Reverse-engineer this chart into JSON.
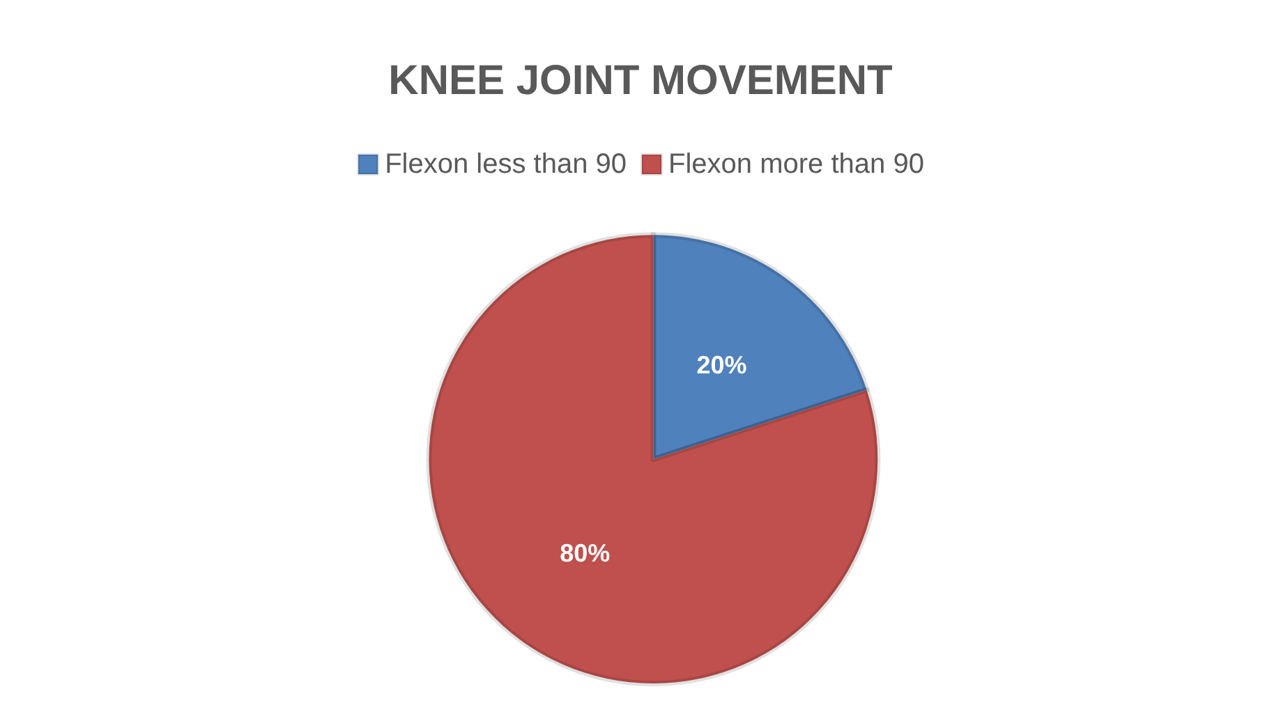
{
  "chart_data": {
    "type": "pie",
    "title": "KNEE JOINT MOVEMENT",
    "categories": [
      "Flexon less than 90",
      "Flexon more than 90"
    ],
    "values": [
      20,
      80
    ],
    "colors": [
      "#4f81bd",
      "#c0504d"
    ],
    "value_labels": [
      "20%",
      "80%"
    ],
    "legend": "top"
  }
}
